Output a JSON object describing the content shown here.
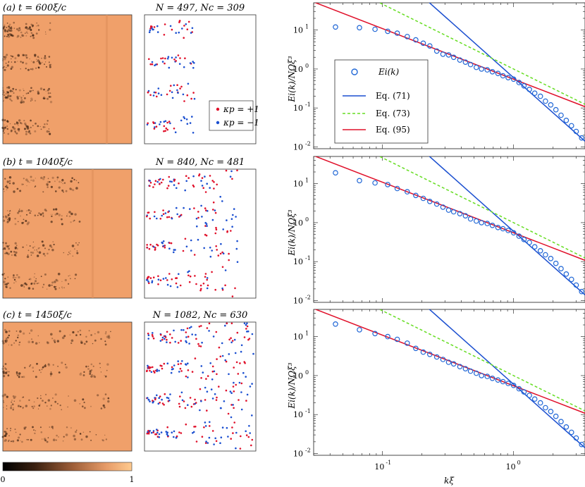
{
  "colors": {
    "orange": "#f0a06a",
    "red": "#e0102a",
    "blue": "#1b4fd0",
    "green": "#66dd22",
    "marker": "#1f66d6"
  },
  "panels": [
    {
      "label": "(a)  t = 600ξ/c",
      "counts": "N = 497, Nc = 309"
    },
    {
      "label": "(b)  t = 1040ξ/c",
      "counts": "N = 840, Nc = 481"
    },
    {
      "label": "(c)  t = 1450ξ/c",
      "counts": "N = 1082, Nc = 630"
    }
  ],
  "vortex_legend": {
    "pos": "κp = +1",
    "neg": "κp = −1"
  },
  "colorbar": {
    "min": "0",
    "max": "1"
  },
  "chart_data": {
    "type": "scatter",
    "xscale": "log",
    "yscale": "log",
    "xlim": [
      0.03,
      3.5
    ],
    "ylim": [
      0.009,
      50
    ],
    "xlabel": "kξ",
    "ylabel": "Ei(k)/NΩξ³",
    "x_ticks": [
      "10^-1",
      "10^0"
    ],
    "y_ticks": [
      "10^-2",
      "10^-1",
      "10^0",
      "10^1"
    ],
    "legend": [
      "Ei(k)",
      "Eq. (71)",
      "Eq. (73)",
      "Eq. (95)"
    ],
    "subplots": [
      {
        "k": [
          0.044,
          0.067,
          0.088,
          0.11,
          0.13,
          0.155,
          0.18,
          0.205,
          0.23,
          0.26,
          0.29,
          0.32,
          0.35,
          0.39,
          0.43,
          0.47,
          0.52,
          0.57,
          0.63,
          0.69,
          0.76,
          0.83,
          0.91,
          1.0,
          1.1,
          1.2,
          1.32,
          1.45,
          1.6,
          1.75,
          1.92,
          2.1,
          2.3,
          2.52,
          2.76,
          3.0,
          3.3
        ],
        "E": [
          12.0,
          11.5,
          10.5,
          9.3,
          8.3,
          6.8,
          5.6,
          4.6,
          3.9,
          2.9,
          2.4,
          2.3,
          2.0,
          1.7,
          1.5,
          1.3,
          1.1,
          1.0,
          0.95,
          0.85,
          0.77,
          0.67,
          0.6,
          0.55,
          0.45,
          0.37,
          0.3,
          0.24,
          0.2,
          0.15,
          0.12,
          0.09,
          0.065,
          0.048,
          0.035,
          0.025,
          0.017
        ]
      },
      {
        "k": [
          0.044,
          0.067,
          0.088,
          0.11,
          0.13,
          0.155,
          0.18,
          0.205,
          0.23,
          0.26,
          0.29,
          0.32,
          0.35,
          0.39,
          0.43,
          0.47,
          0.52,
          0.57,
          0.63,
          0.69,
          0.76,
          0.83,
          0.91,
          1.0,
          1.1,
          1.2,
          1.32,
          1.45,
          1.6,
          1.75,
          1.92,
          2.1,
          2.3,
          2.52,
          2.76,
          3.0,
          3.3
        ],
        "E": [
          19.0,
          12.0,
          10.5,
          9.5,
          7.5,
          6.2,
          5.0,
          4.2,
          3.5,
          3.0,
          2.5,
          2.1,
          1.9,
          1.7,
          1.5,
          1.25,
          1.1,
          1.0,
          0.95,
          0.85,
          0.75,
          0.7,
          0.63,
          0.55,
          0.45,
          0.37,
          0.31,
          0.24,
          0.19,
          0.15,
          0.12,
          0.09,
          0.066,
          0.048,
          0.035,
          0.025,
          0.017
        ]
      },
      {
        "k": [
          0.044,
          0.067,
          0.088,
          0.11,
          0.13,
          0.155,
          0.18,
          0.205,
          0.23,
          0.26,
          0.29,
          0.32,
          0.35,
          0.39,
          0.43,
          0.47,
          0.52,
          0.57,
          0.63,
          0.69,
          0.76,
          0.83,
          0.91,
          1.0,
          1.1,
          1.2,
          1.32,
          1.45,
          1.6,
          1.75,
          1.92,
          2.1,
          2.3,
          2.52,
          2.76,
          3.0,
          3.3
        ],
        "E": [
          21.0,
          15.0,
          12.0,
          10.0,
          8.5,
          6.8,
          5.0,
          4.0,
          3.5,
          3.0,
          2.6,
          2.2,
          2.0,
          1.7,
          1.5,
          1.3,
          1.15,
          1.0,
          0.95,
          0.85,
          0.77,
          0.7,
          0.63,
          0.56,
          0.46,
          0.38,
          0.31,
          0.25,
          0.2,
          0.15,
          0.12,
          0.09,
          0.066,
          0.048,
          0.035,
          0.025,
          0.017
        ]
      }
    ],
    "lines": {
      "eq71": {
        "anchor_k": 1.0,
        "anchor_E": 0.6,
        "slope": -3
      },
      "eq73": {
        "anchor_k": 1.0,
        "anchor_E": 1.0,
        "slope": -1.667
      },
      "eq95": {
        "anchor_k": 1.0,
        "anchor_E": 0.55,
        "slope": -1.3
      }
    }
  }
}
